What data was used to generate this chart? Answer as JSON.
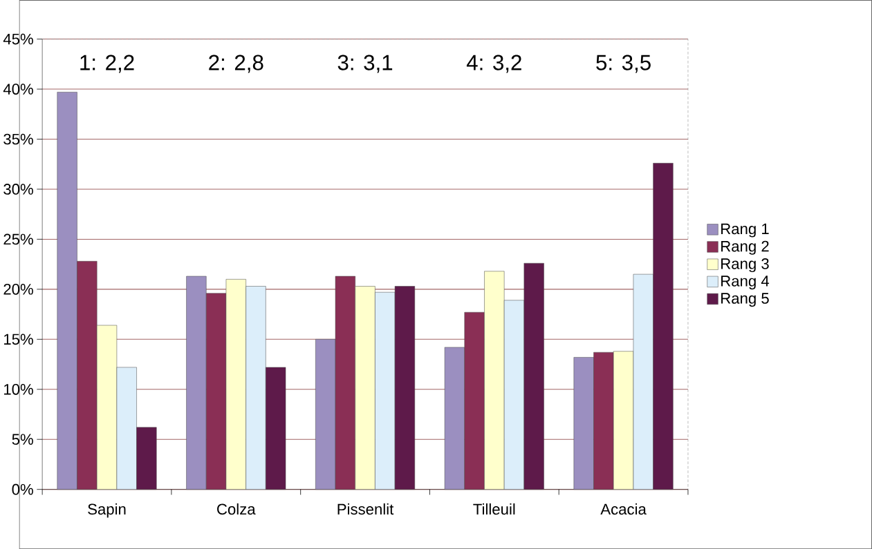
{
  "chart_data": {
    "type": "bar",
    "categories": [
      "Sapin",
      "Colza",
      "Pissenlit",
      "Tilleuil",
      "Acacia"
    ],
    "series": [
      {
        "name": "Rang 1",
        "color": "#9b8fc0",
        "values": [
          39.7,
          21.3,
          15.0,
          14.2,
          13.2
        ]
      },
      {
        "name": "Rang 2",
        "color": "#8a2f55",
        "values": [
          22.8,
          19.6,
          21.3,
          17.7,
          13.7
        ]
      },
      {
        "name": "Rang 3",
        "color": "#ffffcc",
        "values": [
          16.4,
          21.0,
          20.3,
          21.8,
          13.8
        ]
      },
      {
        "name": "Rang 4",
        "color": "#dceefa",
        "values": [
          12.2,
          20.3,
          19.7,
          18.9,
          21.5
        ]
      },
      {
        "name": "Rang 5",
        "color": "#5e1a4a",
        "values": [
          6.2,
          12.2,
          20.3,
          22.6,
          32.6
        ]
      }
    ],
    "ylim": [
      0,
      45
    ],
    "yticks": [
      {
        "value": 0,
        "label": "0%"
      },
      {
        "value": 5,
        "label": "5%"
      },
      {
        "value": 10,
        "label": "10%"
      },
      {
        "value": 15,
        "label": "15%"
      },
      {
        "value": 20,
        "label": "20%"
      },
      {
        "value": 25,
        "label": "25%"
      },
      {
        "value": 30,
        "label": "30%"
      },
      {
        "value": 35,
        "label": "35%"
      },
      {
        "value": 40,
        "label": "40%"
      },
      {
        "value": 45,
        "label": "45%"
      }
    ],
    "annotations": [
      "1: 2,2",
      "2: 2,8",
      "3: 3,1",
      "4: 3,2",
      "5: 3,5"
    ],
    "grid": "y",
    "legend": "right"
  }
}
